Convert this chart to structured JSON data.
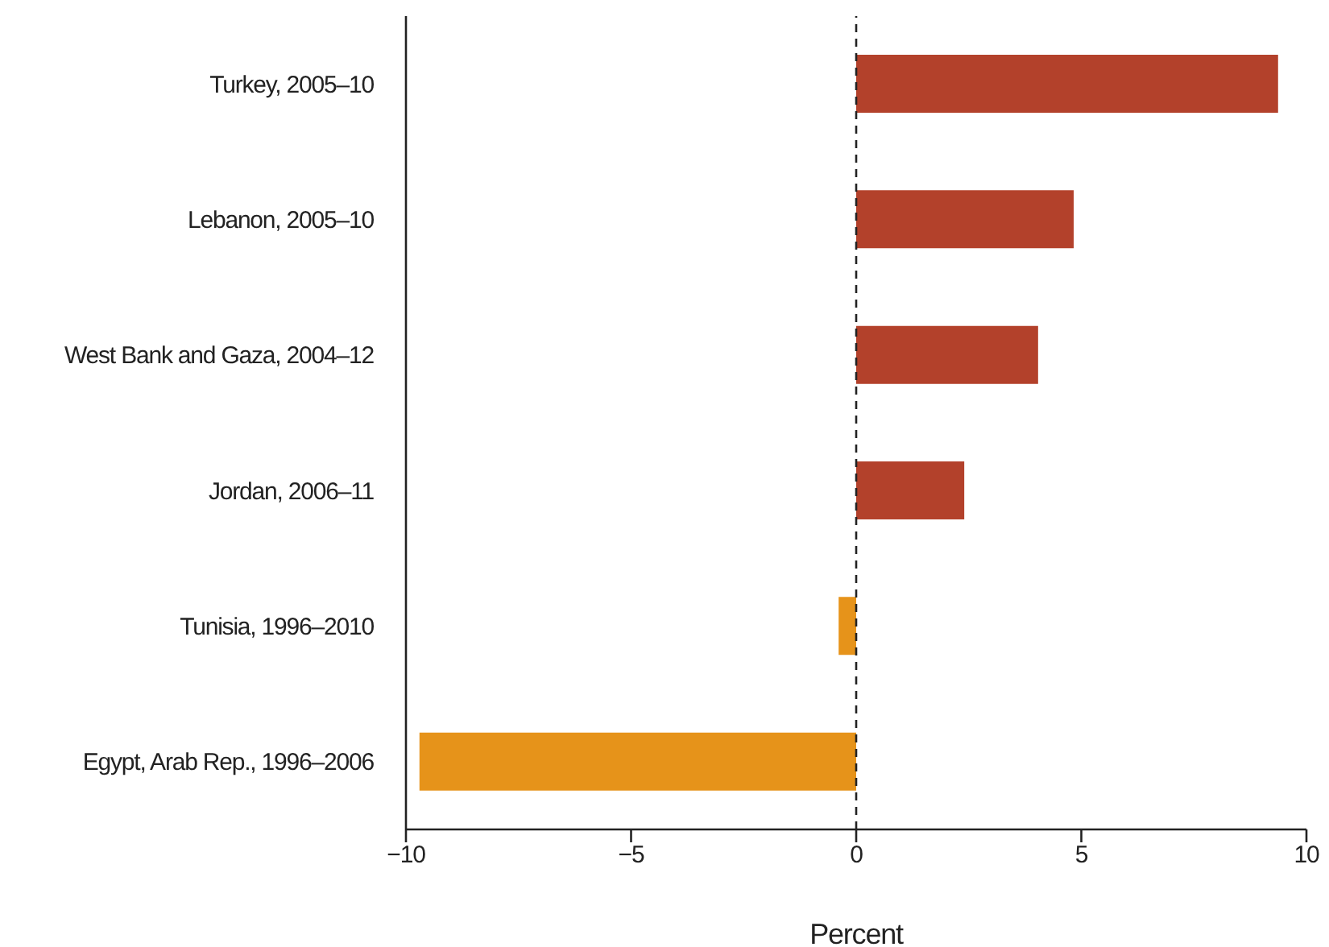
{
  "chart_data": {
    "type": "bar",
    "orientation": "horizontal",
    "xlabel": "Percent",
    "categories": [
      "Turkey, 2005–10",
      "Lebanon, 2005–10",
      "West Bank and Gaza, 2004–12",
      "Jordan, 2006–11",
      "Tunisia, 1996–2010",
      "Egypt, Arab Rep., 1996–2006"
    ],
    "values": [
      9.37,
      4.83,
      4.04,
      2.4,
      -0.39,
      -9.7
    ],
    "colors": [
      "#b3412b",
      "#b3412b",
      "#b3412b",
      "#b3412b",
      "#e6931a",
      "#e6931a"
    ],
    "xlim": [
      -10,
      10
    ],
    "xticks": [
      {
        "value": -10,
        "label": "−10"
      },
      {
        "value": -5,
        "label": "−5"
      },
      0,
      5,
      10
    ],
    "ref_lines": [
      {
        "axis": "x",
        "value": 0,
        "color": "#222222",
        "line_style": "dashed"
      }
    ],
    "grid": false,
    "legend": false
  }
}
